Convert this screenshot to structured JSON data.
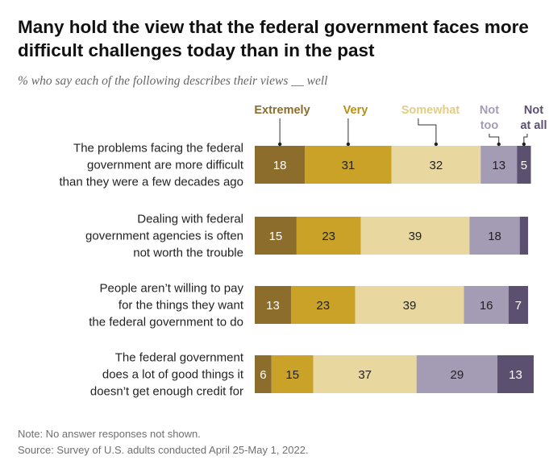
{
  "title": "Many hold the view that the federal government faces more difficult challenges today than in the past",
  "subtitle": "% who say each of the following describes their views __ well",
  "note": "Note: No answer responses not shown.",
  "source": "Source: Survey of U.S. adults conducted April 25-May 1, 2022.",
  "chart_data": {
    "type": "bar",
    "orientation": "horizontal",
    "stacked": true,
    "categories": [
      [
        "The problems facing the federal",
        "government are more difficult",
        "than they were a few decades ago"
      ],
      [
        "Dealing with federal",
        "government agencies is often",
        "not worth the trouble"
      ],
      [
        "People aren’t willing to pay",
        "for the things they want",
        "the federal government to do"
      ],
      [
        "The federal government",
        "does a lot of good things it",
        "doesn’t get enough credit for"
      ]
    ],
    "series": [
      {
        "name": "Extremely",
        "legend_lines": [
          "Extremely"
        ],
        "color": "#8c6d2c",
        "legend_color": "#8c6d2c",
        "text_color": "#ffffff",
        "values": [
          18,
          15,
          13,
          6
        ]
      },
      {
        "name": "Very",
        "legend_lines": [
          "Very"
        ],
        "color": "#c9a227",
        "legend_color": "#b8900f",
        "text_color": "#222222",
        "values": [
          31,
          23,
          23,
          15
        ]
      },
      {
        "name": "Somewhat",
        "legend_lines": [
          "Somewhat"
        ],
        "color": "#e8d8a0",
        "legend_color": "#e2cd86",
        "text_color": "#222222",
        "values": [
          32,
          39,
          39,
          37
        ]
      },
      {
        "name": "Not too",
        "legend_lines": [
          "Not",
          "too"
        ],
        "color": "#a49cb4",
        "legend_color": "#a49cb4",
        "text_color": "#222222",
        "values": [
          13,
          18,
          16,
          29
        ]
      },
      {
        "name": "Not at all",
        "legend_lines": [
          "Not",
          "at all"
        ],
        "color": "#5b5070",
        "legend_color": "#5b5070",
        "text_color": "#ffffff",
        "values": [
          5,
          3,
          7,
          13
        ]
      }
    ],
    "labels": [
      [
        "18",
        "31",
        "32",
        "13",
        "5"
      ],
      [
        "15",
        "23",
        "39",
        "18",
        ""
      ],
      [
        "13",
        "23",
        "39",
        "16",
        "7"
      ],
      [
        "6",
        "15",
        "37",
        "29",
        "13"
      ]
    ],
    "xlim": [
      0,
      100
    ],
    "legend_position": "top",
    "grid": false
  }
}
